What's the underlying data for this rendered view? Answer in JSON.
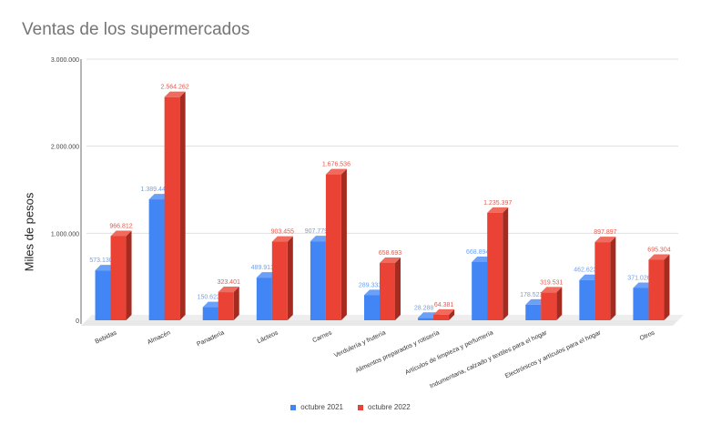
{
  "chart_data": {
    "type": "bar",
    "title": "Ventas de los supermercados",
    "xlabel": "",
    "ylabel": "Miles de pesos",
    "ylim": [
      0,
      3000000
    ],
    "yticks": [
      "0",
      "1.000.000",
      "2.000.000",
      "3.000.000"
    ],
    "ytick_values": [
      0,
      1000000,
      2000000,
      3000000
    ],
    "grid": true,
    "legend_position": "bottom",
    "style": "3d-bar",
    "categories": [
      "Bebidas",
      "Almacén",
      "Panadería",
      "Lácteos",
      "Carnes",
      "Verdulería y frutería",
      "Alimentos preparados y rotisería",
      "Artículos de limpieza y perfumería",
      "Indumentaria, calzado y textiles para el hogar",
      "Electrónicos y artículos para el hogar",
      "Otros"
    ],
    "series": [
      {
        "name": "octubre 2021",
        "color": "#4285f4",
        "values": [
          573130,
          1389448,
          150623,
          489913,
          907779,
          289333,
          28288,
          668894,
          178523,
          462623,
          371026
        ],
        "labels": [
          "573.130",
          "1.389.448",
          "150.623",
          "489.913",
          "907.779",
          "289.333",
          "28.288",
          "668.894",
          "178.523",
          "462.623",
          "371.026"
        ]
      },
      {
        "name": "octubre 2022",
        "color": "#ea4335",
        "values": [
          966812,
          2564262,
          323401,
          903455,
          1676536,
          658693,
          64381,
          1235397,
          319531,
          897897,
          695304
        ],
        "labels": [
          "966.812",
          "2.564.262",
          "323.401",
          "903.455",
          "1.676.536",
          "658.693",
          "64.381",
          "1.235.397",
          "319.531",
          "897.897",
          "695.304"
        ]
      }
    ]
  }
}
